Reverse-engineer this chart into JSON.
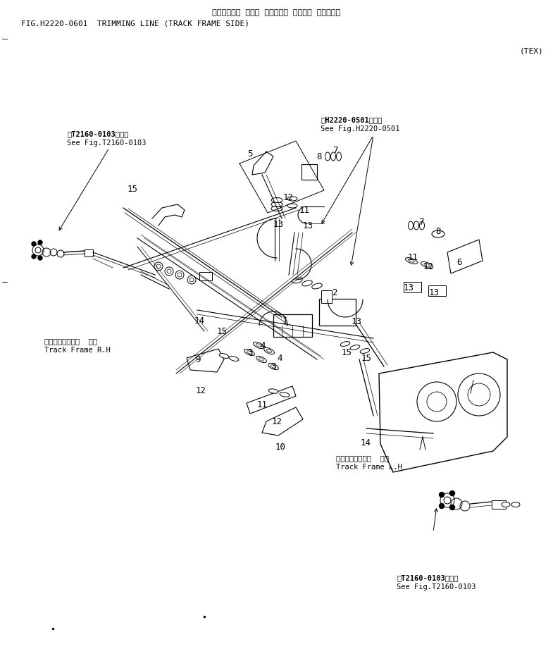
{
  "fig_width": 7.85,
  "fig_height": 9.38,
  "dpi": 100,
  "bg_color": "#ffffff",
  "title_jp": "トリミング・ ライン （トラック フレーム サイド・）",
  "title_en": "FIG.H2220-0601  TRIMMING LINE (TRACK FRAME SIDE)",
  "tex_label": "(TEX)",
  "ref_tl_jp": "第T2160-0103図参照",
  "ref_tl_en": "See Fig.T2160-0103",
  "ref_tr_jp": "第H2220-0501図参照",
  "ref_tr_en": "See Fig.H2220-0501",
  "ref_br_jp": "第T2160-0103図参照",
  "ref_br_en": "See Fig.T2160-0103",
  "tf_rh_jp": "トラックフレーム  右側",
  "tf_rh_en": "Track Frame R.H",
  "tf_lh_jp": "トラックフレーム  左側",
  "tf_lh_en": "Track Frame L.H"
}
